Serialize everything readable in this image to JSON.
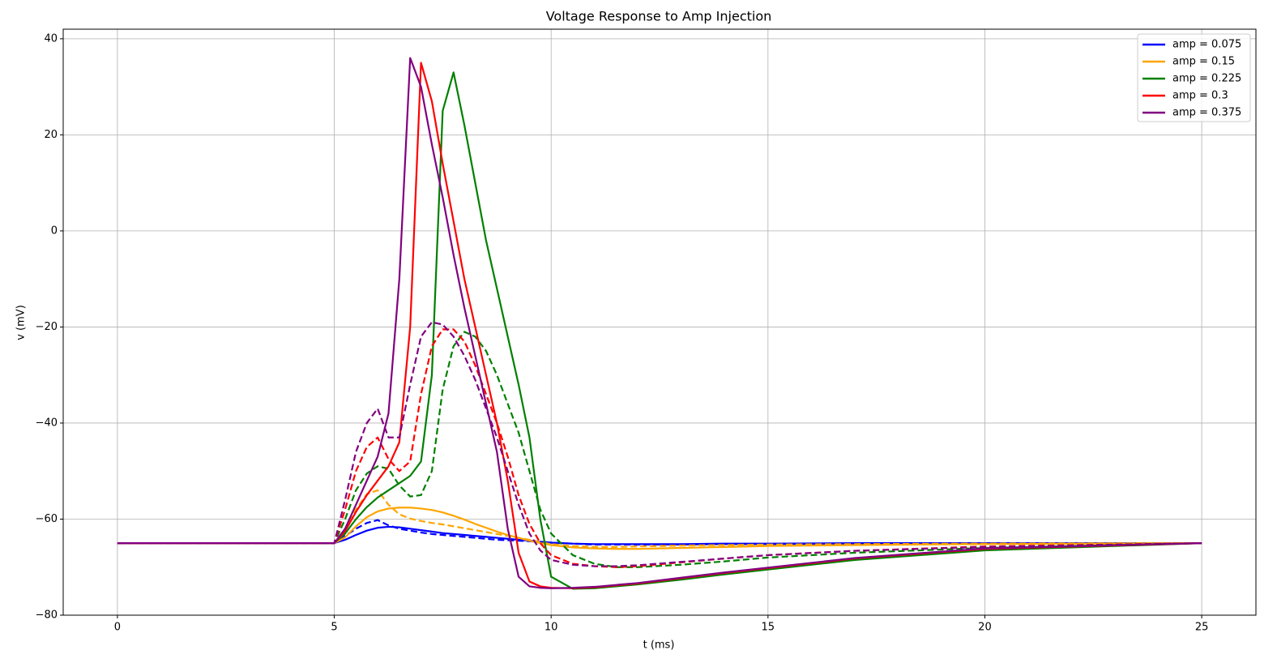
{
  "chart_data": {
    "type": "line",
    "title": "Voltage Response to Amp Injection",
    "x_label": "t (ms)",
    "y_label": "v (mV)",
    "x": [
      0,
      5,
      5.25,
      5.5,
      5.75,
      6,
      6.25,
      6.5,
      6.75,
      7,
      7.25,
      7.5,
      7.75,
      8,
      8.25,
      8.5,
      8.75,
      9,
      9.25,
      9.5,
      9.75,
      10,
      10.5,
      11,
      11.5,
      12,
      13,
      14,
      15,
      17,
      20,
      25
    ],
    "xlim": [
      -1.25,
      26.25
    ],
    "xticks": [
      0,
      5,
      10,
      15,
      20,
      25
    ],
    "ylim": [
      -80,
      42
    ],
    "yticks": [
      {
        "value": -80,
        "label": "−80"
      },
      {
        "value": -60,
        "label": "−60"
      },
      {
        "value": -40,
        "label": "−40"
      },
      {
        "value": -20,
        "label": "−20"
      },
      0,
      20,
      40
    ],
    "grid": true,
    "legend": "upper right",
    "series": [
      {
        "name": "amp = 0.075",
        "color": "blue",
        "values": [
          -65,
          -65,
          -64.3,
          -63.3,
          -62.4,
          -61.8,
          -61.6,
          -61.7,
          -62,
          -62.3,
          -62.6,
          -62.9,
          -63.1,
          -63.3,
          -63.5,
          -63.7,
          -63.9,
          -64.1,
          -64.3,
          -64.5,
          -64.7,
          -64.9,
          -65.1,
          -65.2,
          -65.2,
          -65.2,
          -65.2,
          -65.1,
          -65.1,
          -65,
          -65,
          -65
        ]
      },
      {
        "color": "blue",
        "dashed": true,
        "values": [
          -65,
          -65,
          -63.5,
          -62,
          -60.8,
          -60.2,
          -61.3,
          -62,
          -62.4,
          -62.8,
          -63.1,
          -63.3,
          -63.5,
          -63.7,
          -63.9,
          -64.1,
          -64.3,
          -64.4,
          -64.5,
          -64.6,
          -64.8,
          -64.9,
          -65.1,
          -65.3,
          -65.3,
          -65.3,
          -65.3,
          -65.2,
          -65.2,
          -65.1,
          -65,
          -65
        ]
      },
      {
        "name": "amp = 0.15",
        "color": "orange",
        "values": [
          -65,
          -65,
          -63.8,
          -61.5,
          -59.6,
          -58.4,
          -57.8,
          -57.6,
          -57.6,
          -57.8,
          -58.1,
          -58.6,
          -59.3,
          -60.1,
          -61,
          -61.8,
          -62.6,
          -63.3,
          -63.9,
          -64.5,
          -65,
          -65.4,
          -65.9,
          -66.1,
          -66.2,
          -66.2,
          -66,
          -65.8,
          -65.6,
          -65.4,
          -65.2,
          -65
        ]
      },
      {
        "color": "orange",
        "dashed": true,
        "values": [
          -65,
          -65,
          -62,
          -58,
          -54.8,
          -54,
          -57,
          -59,
          -59.9,
          -60.4,
          -60.8,
          -61.1,
          -61.5,
          -61.9,
          -62.3,
          -62.7,
          -63.1,
          -63.5,
          -63.9,
          -64.3,
          -64.8,
          -65.2,
          -65.6,
          -65.8,
          -65.8,
          -65.7,
          -65.5,
          -65.4,
          -65.3,
          -65.2,
          -65.1,
          -65
        ]
      },
      {
        "name": "amp = 0.225",
        "color": "green",
        "values": [
          -65,
          -65,
          -63,
          -60,
          -57.5,
          -55.5,
          -54,
          -52.5,
          -51,
          -48,
          -30,
          25,
          33,
          22,
          10,
          -2,
          -12,
          -22,
          -32,
          -43,
          -60,
          -72,
          -74.5,
          -74.4,
          -74,
          -73.6,
          -72.6,
          -71.5,
          -70.5,
          -68.5,
          -66.5,
          -65
        ]
      },
      {
        "color": "green",
        "dashed": true,
        "values": [
          -65,
          -65,
          -60,
          -54,
          -50.5,
          -49,
          -49.5,
          -53,
          -55.3,
          -55,
          -50,
          -33,
          -24,
          -21,
          -22,
          -25,
          -30,
          -36,
          -42,
          -50,
          -58,
          -63,
          -67.5,
          -69.3,
          -70,
          -70,
          -69.5,
          -68.8,
          -68,
          -67,
          -66,
          -65
        ]
      },
      {
        "name": "amp = 0.3",
        "color": "red",
        "values": [
          -65,
          -65,
          -62.5,
          -58.5,
          -55,
          -52,
          -49,
          -44,
          -20,
          35,
          27,
          14,
          2,
          -10,
          -20,
          -30,
          -40,
          -52,
          -67,
          -73,
          -74,
          -74.3,
          -74.4,
          -74.2,
          -73.8,
          -73.4,
          -72.3,
          -71.2,
          -70.2,
          -68.2,
          -66.2,
          -65
        ]
      },
      {
        "color": "red",
        "dashed": true,
        "values": [
          -65,
          -65,
          -58,
          -50,
          -45,
          -43,
          -47.5,
          -50,
          -48,
          -34,
          -24,
          -20.5,
          -20.5,
          -23,
          -28,
          -34,
          -40,
          -47,
          -55,
          -61,
          -65,
          -67.5,
          -69.3,
          -69.8,
          -70,
          -69.8,
          -69,
          -68.2,
          -67.5,
          -66.6,
          -65.7,
          -65
        ]
      },
      {
        "name": "amp = 0.375",
        "color": "purple",
        "values": [
          -65,
          -65,
          -62,
          -57,
          -52,
          -47,
          -38,
          -10,
          36,
          30,
          18,
          7,
          -5,
          -16,
          -26,
          -36,
          -46,
          -62,
          -72,
          -74,
          -74.3,
          -74.4,
          -74.3,
          -74.1,
          -73.7,
          -73.3,
          -72.2,
          -71.1,
          -70.1,
          -68.1,
          -66.1,
          -65
        ]
      },
      {
        "color": "purple",
        "dashed": true,
        "values": [
          -65,
          -65,
          -56,
          -46,
          -40,
          -37,
          -43,
          -43,
          -32,
          -22,
          -19,
          -19.5,
          -22,
          -26,
          -31,
          -37,
          -43,
          -50,
          -57,
          -63,
          -66.5,
          -68.5,
          -69.5,
          -69.8,
          -69.8,
          -69.6,
          -68.9,
          -68.2,
          -67.5,
          -66.6,
          -65.8,
          -65
        ]
      }
    ]
  }
}
